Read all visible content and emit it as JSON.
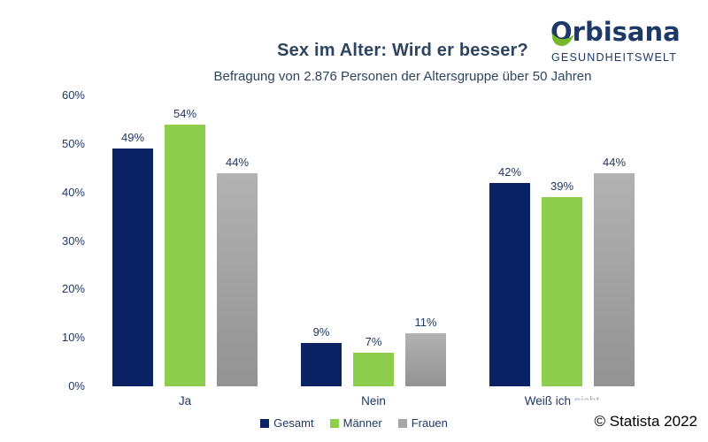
{
  "header": {
    "title": "Sex im Alter: Wird er besser?",
    "subtitle": "Befragung von 2.876 Personen der Altersgruppe über 50 Jahren"
  },
  "logo": {
    "brand": "Orbisana",
    "tagline": "GESUNDHEITSWELT",
    "brand_color": "#1c3968",
    "leaf_color": "#76b82a"
  },
  "chart_data": {
    "type": "bar",
    "title": "Sex im Alter: Wird er besser?",
    "subtitle": "Befragung von 2.876 Personen der Altersgruppe über 50 Jahren",
    "categories": [
      "Ja",
      "Nein",
      "Weiß ich nicht"
    ],
    "category_render": [
      {
        "text": "Ja"
      },
      {
        "text": "Nein"
      },
      {
        "text": "Weiß ich",
        "faint": "nicht"
      }
    ],
    "series": [
      {
        "name": "Gesamt",
        "color": "#0b2264",
        "values": [
          49,
          9,
          42
        ]
      },
      {
        "name": "Männer",
        "color": "#8dcf4d",
        "values": [
          54,
          7,
          39
        ]
      },
      {
        "name": "Frauen",
        "color": "#a6a6a6",
        "gradient": [
          "#b2b2b2",
          "#939393"
        ],
        "values": [
          44,
          11,
          44
        ]
      }
    ],
    "value_suffix": "%",
    "xlabel": "",
    "ylabel": "",
    "ylim": [
      0,
      60
    ],
    "ytick_step": 10,
    "yticks": [
      "0%",
      "10%",
      "20%",
      "30%",
      "40%",
      "50%",
      "60%"
    ],
    "grid": false,
    "legend_position": "bottom",
    "text_color": "#1f3864"
  },
  "footer": {
    "copyright": "© Statista 2022"
  }
}
